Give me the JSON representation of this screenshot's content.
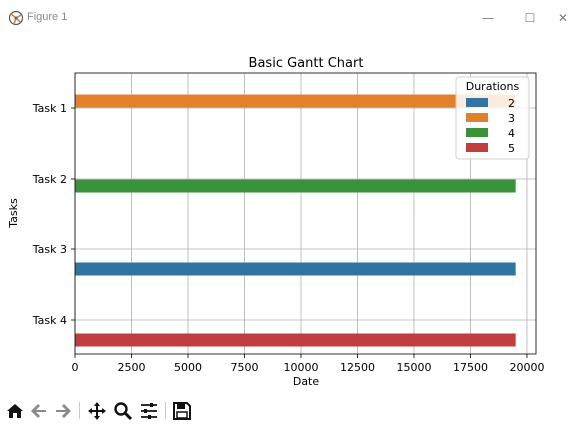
{
  "window": {
    "title": "Figure 1",
    "minimize_glyph": "—",
    "maximize_glyph": "☐",
    "close_glyph": "✕"
  },
  "toolbar": {
    "buttons": [
      "home-icon",
      "back-icon",
      "forward-icon",
      "pan-icon",
      "zoom-icon",
      "configure-subplots-icon",
      "save-icon"
    ]
  },
  "chart_data": {
    "type": "bar",
    "orientation": "horizontal",
    "title": "Basic Gantt Chart",
    "xlabel": "Date",
    "ylabel": "Tasks",
    "xlim": [
      0,
      20400
    ],
    "x_ticks": [
      0,
      2500,
      5000,
      7500,
      10000,
      12500,
      15000,
      17500,
      20000
    ],
    "x_tick_labels": [
      "0",
      "2500",
      "5000",
      "7500",
      "10000",
      "12500",
      "15000",
      "17500",
      "20000"
    ],
    "categories": [
      "Task 1",
      "Task 2",
      "Task 3",
      "Task 4"
    ],
    "grid": true,
    "legend": {
      "title": "Durations",
      "position": "top-right"
    },
    "series": [
      {
        "name": "2",
        "color": "#3274a1",
        "category": "Task 3",
        "start": 0,
        "end": 19500
      },
      {
        "name": "3",
        "color": "#e1812c",
        "category": "Task 1",
        "start": 0,
        "end": 19500
      },
      {
        "name": "4",
        "color": "#3a923a",
        "category": "Task 2",
        "start": 0,
        "end": 19500
      },
      {
        "name": "5",
        "color": "#c03d3e",
        "category": "Task 4",
        "start": 0,
        "end": 19500
      }
    ]
  }
}
